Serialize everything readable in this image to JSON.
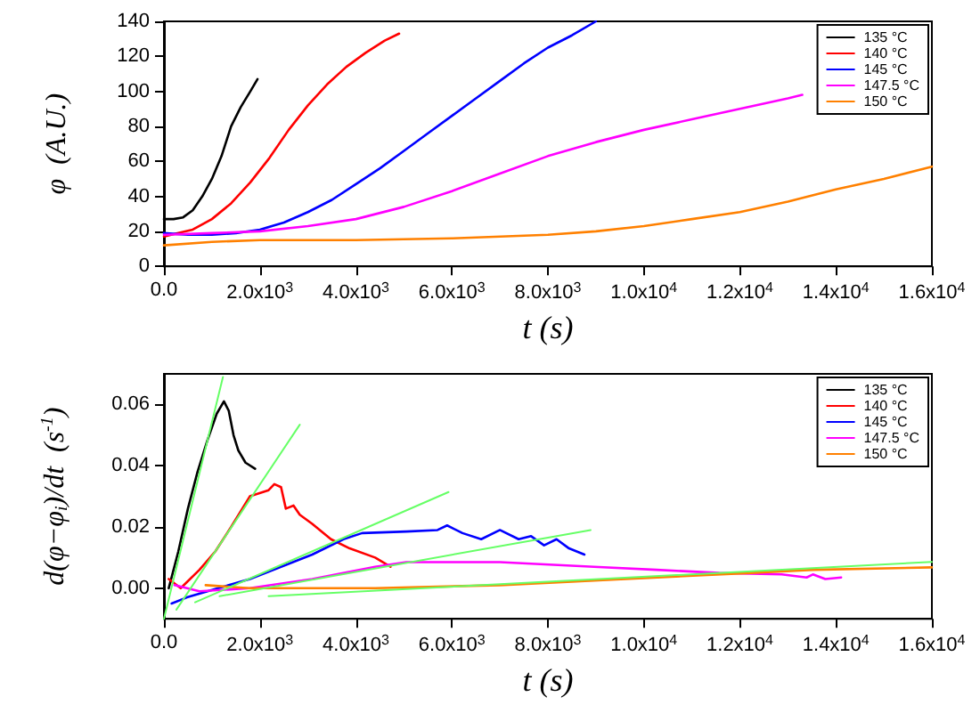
{
  "chart_data": [
    {
      "type": "line",
      "xlabel": "t (s)",
      "ylabel": "φ  (A.U.)",
      "xlim": [
        0,
        16000
      ],
      "ylim": [
        0,
        140
      ],
      "xticks": [
        {
          "value": 0,
          "label": "0.0"
        },
        {
          "value": 2000,
          "label": "2.0x10$^{3}$"
        },
        {
          "value": 4000,
          "label": "4.0x10$^{3}$"
        },
        {
          "value": 6000,
          "label": "6.0x10$^{3}$"
        },
        {
          "value": 8000,
          "label": "8.0x10$^{3}$"
        },
        {
          "value": 10000,
          "label": "1.0x10$^{4}$"
        },
        {
          "value": 12000,
          "label": "1.2x10$^{4}$"
        },
        {
          "value": 14000,
          "label": "1.4x10$^{4}$"
        },
        {
          "value": 16000,
          "label": "1.6x10$^{4}$"
        }
      ],
      "yticks": [
        0,
        20,
        40,
        60,
        80,
        100,
        120,
        140
      ],
      "grid": false,
      "legend": "top right",
      "marker": "none",
      "line_style": "solid",
      "series": [
        {
          "name": "135 °C",
          "color": "#000000",
          "x": [
            0,
            200,
            400,
            600,
            800,
            1000,
            1200,
            1400,
            1600,
            1800,
            1950
          ],
          "values": [
            27,
            27,
            28,
            32,
            40,
            50,
            63,
            80,
            91,
            100,
            107
          ]
        },
        {
          "name": "140 °C",
          "color": "#ff0000",
          "x": [
            0,
            300,
            600,
            1000,
            1400,
            1800,
            2200,
            2600,
            3000,
            3400,
            3800,
            4200,
            4600,
            4900
          ],
          "values": [
            17,
            19,
            21,
            27,
            36,
            48,
            62,
            78,
            92,
            104,
            114,
            122,
            129,
            133
          ]
        },
        {
          "name": "145 °C",
          "color": "#0000ff",
          "x": [
            0,
            500,
            1000,
            1500,
            2000,
            2500,
            3000,
            3500,
            4000,
            4500,
            5000,
            5500,
            6000,
            6500,
            7000,
            7500,
            8000,
            8500,
            9000
          ],
          "values": [
            19,
            18,
            18,
            19,
            21,
            25,
            31,
            38,
            47,
            56,
            66,
            76,
            86,
            96,
            106,
            116,
            125,
            132,
            140
          ]
        },
        {
          "name": "147.5 °C",
          "color": "#ff00ff",
          "x": [
            0,
            1000,
            2000,
            3000,
            4000,
            5000,
            6000,
            7000,
            8000,
            9000,
            10000,
            11000,
            12000,
            13000,
            13300
          ],
          "values": [
            18,
            19,
            20,
            23,
            27,
            34,
            43,
            53,
            63,
            71,
            78,
            84,
            90,
            96,
            98
          ]
        },
        {
          "name": "150 °C",
          "color": "#ff8000",
          "x": [
            0,
            1000,
            2000,
            4000,
            6000,
            8000,
            9000,
            10000,
            11000,
            12000,
            13000,
            14000,
            15000,
            16000
          ],
          "values": [
            12,
            14,
            15,
            15,
            16,
            18,
            20,
            23,
            27,
            31,
            37,
            44,
            50,
            57
          ]
        }
      ]
    },
    {
      "type": "line",
      "xlabel": "t (s)",
      "ylabel": "d(φ−φ$_{i}$)/dt  (s$^{-1}$)",
      "xlim": [
        0,
        16000
      ],
      "ylim": [
        -0.01,
        0.07
      ],
      "xticks": [
        {
          "value": 0,
          "label": "0.0"
        },
        {
          "value": 2000,
          "label": "2.0x10$^{3}$"
        },
        {
          "value": 4000,
          "label": "4.0x10$^{3}$"
        },
        {
          "value": 6000,
          "label": "6.0x10$^{3}$"
        },
        {
          "value": 8000,
          "label": "8.0x10$^{3}$"
        },
        {
          "value": 10000,
          "label": "1.0x10$^{4}$"
        },
        {
          "value": 12000,
          "label": "1.2x10$^{4}$"
        },
        {
          "value": 14000,
          "label": "1.4x10$^{4}$"
        },
        {
          "value": 16000,
          "label": "1.6x10$^{4}$"
        }
      ],
      "yticks": [
        {
          "value": 0,
          "label": "0.00"
        },
        {
          "value": 0.02,
          "label": "0.02"
        },
        {
          "value": 0.04,
          "label": "0.04"
        },
        {
          "value": 0.06,
          "label": "0.06"
        }
      ],
      "grid": false,
      "legend": "top right",
      "marker": "none",
      "line_style": "solid",
      "series": [
        {
          "name": "135 °C",
          "color": "#000000",
          "x": [
            100,
            300,
            500,
            700,
            900,
            1100,
            1250,
            1350,
            1450,
            1550,
            1700,
            1900
          ],
          "values": [
            0,
            0.012,
            0.026,
            0.038,
            0.048,
            0.057,
            0.061,
            0.058,
            0.05,
            0.045,
            0.041,
            0.039
          ]
        },
        {
          "name": "140 °C",
          "color": "#ff0000",
          "x": [
            100,
            350,
            740,
            1070,
            1400,
            1790,
            2180,
            2300,
            2440,
            2540,
            2700,
            2830,
            3090,
            3480,
            3870,
            4400,
            4720
          ],
          "values": [
            0.003,
            0,
            0.006,
            0.012,
            0.02,
            0.03,
            0.032,
            0.034,
            0.033,
            0.026,
            0.027,
            0.024,
            0.021,
            0.016,
            0.013,
            0.01,
            0.007
          ]
        },
        {
          "name": "145 °C",
          "color": "#0000ff",
          "x": [
            160,
            480,
            1130,
            1790,
            2440,
            3090,
            3740,
            4130,
            5050,
            5700,
            5900,
            6220,
            6610,
            7000,
            7390,
            7650,
            7920,
            8180,
            8440,
            8760
          ],
          "values": [
            -0.005,
            -0.003,
            0,
            0.003,
            0.007,
            0.011,
            0.016,
            0.018,
            0.0185,
            0.019,
            0.0205,
            0.018,
            0.016,
            0.019,
            0.016,
            0.017,
            0.014,
            0.016,
            0.013,
            0.011
          ]
        },
        {
          "name": "147.5 °C",
          "color": "#ff00ff",
          "x": [
            220,
            740,
            1790,
            3090,
            4400,
            5050,
            7000,
            7650,
            8960,
            10260,
            11570,
            12870,
            13390,
            13520,
            13780,
            14110
          ],
          "values": [
            0.001,
            -0.001,
            0,
            0.003,
            0.007,
            0.0085,
            0.0085,
            0.008,
            0.007,
            0.006,
            0.005,
            0.0045,
            0.0035,
            0.0045,
            0.003,
            0.0035
          ]
        },
        {
          "name": "150 °C",
          "color": "#ff8000",
          "x": [
            870,
            1790,
            3090,
            4400,
            5700,
            7000,
            8310,
            9610,
            10920,
            12220,
            13520,
            16000
          ],
          "values": [
            0.001,
            0,
            0,
            0,
            0.0005,
            0.001,
            0.002,
            0.003,
            0.004,
            0.005,
            0.006,
            0.0068
          ]
        },
        {
          "color": "#66ff66",
          "x": [
            0,
            1230
          ],
          "values": [
            -0.01,
            0.069
          ]
        },
        {
          "color": "#66ff66",
          "x": [
            260,
            2830
          ],
          "values": [
            -0.007,
            0.0534
          ]
        },
        {
          "color": "#66ff66",
          "x": [
            650,
            5930
          ],
          "values": [
            -0.0046,
            0.0314
          ]
        },
        {
          "color": "#66ff66",
          "x": [
            1160,
            8890
          ],
          "values": [
            -0.0026,
            0.019
          ]
        },
        {
          "color": "#66ff66",
          "x": [
            2180,
            16000
          ],
          "values": [
            -0.0026,
            0.0086
          ]
        }
      ]
    }
  ]
}
